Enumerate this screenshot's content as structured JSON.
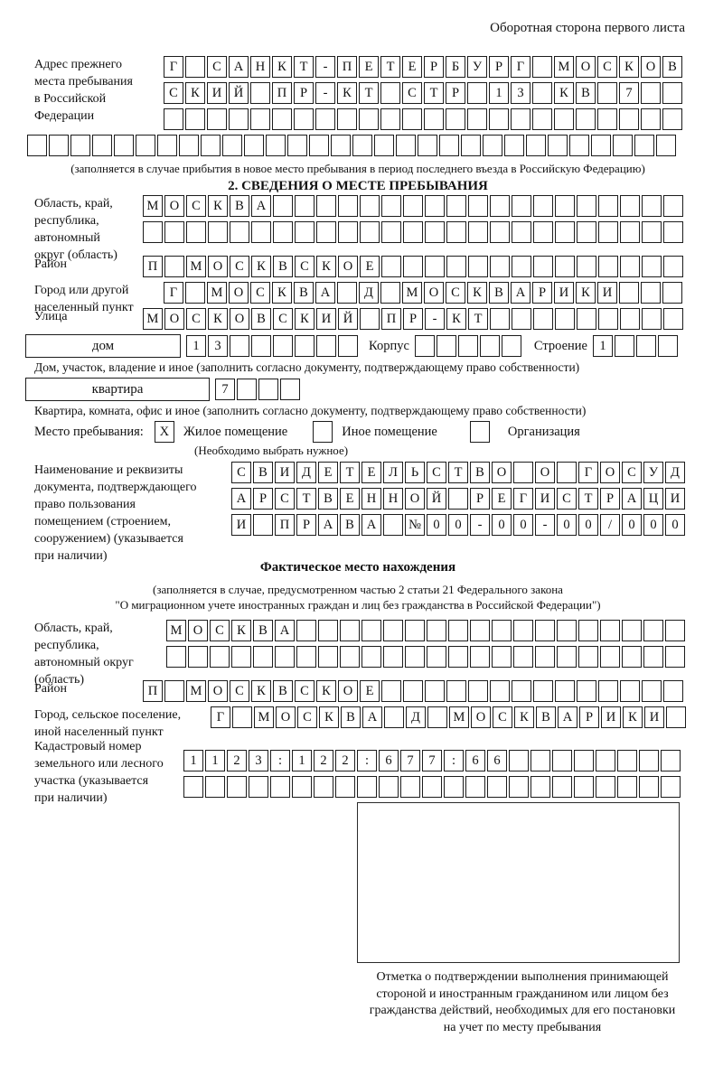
{
  "page_note": "Оборотная сторона первого листа",
  "prev_address": {
    "label": "Адрес прежнего\nместа пребывания\nв Российской\nФедерации",
    "rows": [
      {
        "text": "Г САНКТ-ПЕТЕРБУРГ МОСКОВ",
        "len": 24
      },
      {
        "text": "СКИЙ ПР-КТ СТР 13 КВ 7",
        "len": 24
      },
      {
        "text": "",
        "len": 24
      }
    ],
    "extra_row": {
      "text": "",
      "len": 30
    },
    "note": "(заполняется в случае прибытия в новое место пребывания в период последнего въезда в Российскую Федерацию)"
  },
  "section2": {
    "title": "2. СВЕДЕНИЯ О МЕСТЕ ПРЕБЫВАНИЯ",
    "oblast": {
      "label": "Область, край,\nреспублика,\nавтономный\nокруг (область)",
      "rows": [
        {
          "text": "МОСКВА",
          "len": 25
        },
        {
          "text": "",
          "len": 25
        }
      ]
    },
    "raion": {
      "label": "Район",
      "row": {
        "text": "П МОСКВСКОЕ",
        "len": 25
      }
    },
    "gorod": {
      "label": "Город или другой\nнаселенный пункт",
      "row": {
        "text": "Г МОСКВА Д МОСКВАРИКИ",
        "len": 24
      }
    },
    "ulitsa": {
      "label": "Улица",
      "row": {
        "text": "МОСКОВСКИЙ ПР-КТ",
        "len": 25
      }
    },
    "dom": {
      "box_label": "дом",
      "cells": {
        "text": "13",
        "len": 8
      },
      "korpus_label": "Корпус",
      "korpus_cells": {
        "text": "",
        "len": 5
      },
      "stroenie_label": "Строение",
      "stroenie_cells": {
        "text": "1",
        "len": 4
      }
    },
    "dom_note": "Дом, участок, владение и иное (заполнить согласно документу, подтверждающему право собственности)",
    "kvartira": {
      "box_label": "квартира",
      "cells": {
        "text": "7",
        "len": 4
      }
    },
    "kvartira_note": "Квартира, комната, офис и иное (заполнить согласно документу, подтверждающему право собственности)",
    "mesto": {
      "label": "Место пребывания:",
      "options": [
        {
          "label": "Жилое помещение",
          "box": {
            "text": "X",
            "len": 1
          }
        },
        {
          "label": "Иное помещение",
          "box": {
            "text": "",
            "len": 1
          }
        },
        {
          "label": "Организация",
          "box": {
            "text": "",
            "len": 1
          }
        }
      ],
      "note": "(Необходимо выбрать нужное)"
    },
    "doc": {
      "label": "Наименование и реквизиты\nдокумента, подтверждающего\nправо пользования\nпомещением (строением,\nсооружением) (указывается\nпри наличии)",
      "rows": [
        {
          "text": "СВИДЕТЕЛЬСТВО О ГОСУД",
          "len": 21
        },
        {
          "text": "АРСТВЕННОЙ РЕГИСТРАЦИ",
          "len": 21
        },
        {
          "text": "И ПРАВА №00-00-00/000",
          "len": 21
        }
      ]
    }
  },
  "factual": {
    "title": "Фактическое место нахождения",
    "note_line1": "(заполняется в случае, предусмотренном частью 2 статьи 21 Федерального закона",
    "note_line2": "\"О миграционном учете иностранных граждан и лиц без гражданства в Российской Федерации\")",
    "oblast": {
      "label": "Область, край,\nреспублика,\nавтономный округ\n(область)",
      "rows": [
        {
          "text": "МОСКВА",
          "len": 24
        },
        {
          "text": "",
          "len": 24
        }
      ]
    },
    "raion": {
      "label": "Район",
      "row": {
        "text": "П МОСКВСКОЕ",
        "len": 25
      }
    },
    "gorod": {
      "label": "Город, сельское поселение,\nиной населенный пункт",
      "row": {
        "text": "Г МОСКВА Д МОСКВАРИКИ",
        "len": 22
      }
    },
    "kadastr": {
      "label": "Кадастровый номер\nземельного или лесного\nучастка (указывается\nпри наличии)",
      "rows": [
        {
          "text": "1123:122:677:66",
          "len": 23
        },
        {
          "text": "",
          "len": 23
        }
      ]
    }
  },
  "stamp": {
    "caption": "Отметка о подтверждении выполнения принимающей\nстороной и иностранным гражданином или лицом без\nгражданства действий, необходимых для его постановки\nна учет по месту пребывания"
  }
}
